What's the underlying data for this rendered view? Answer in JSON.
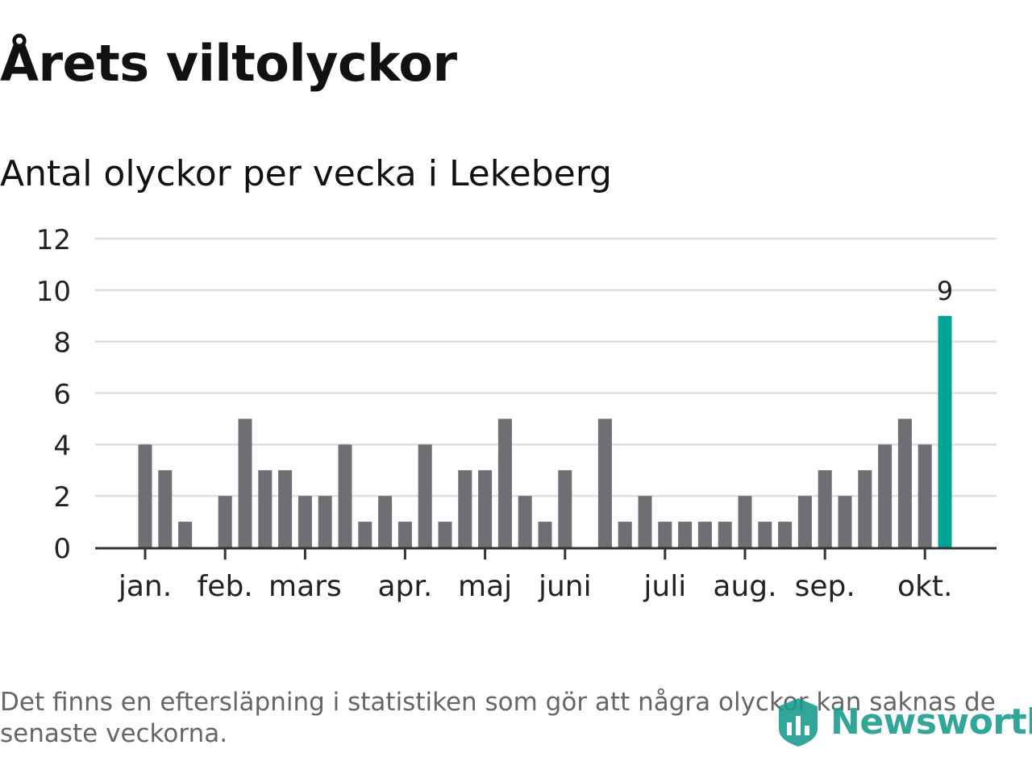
{
  "title": "Årets viltolyckor",
  "subtitle": "Antal olyckor per vecka i Lekeberg",
  "footnote": "Det finns en eftersläpning i statistiken som gör att några olyckor kan saknas de senaste veckorna.",
  "brand": {
    "name": "Newsworthy",
    "icon": "newsworthy-logo-icon"
  },
  "colors": {
    "bar": "#6f6e75",
    "highlight": "#00a496",
    "grid": "#dddddd",
    "axis": "#333333",
    "text": "#111111",
    "brand": "#169c8c"
  },
  "chart_data": {
    "type": "bar",
    "title": "Årets viltolyckor",
    "subtitle": "Antal olyckor per vecka i Lekeberg",
    "xlabel": "",
    "ylabel": "",
    "ylim": [
      0,
      12
    ],
    "yticks": [
      0,
      2,
      4,
      6,
      8,
      10,
      12
    ],
    "grid": true,
    "values": [
      4,
      3,
      1,
      0,
      2,
      5,
      3,
      3,
      2,
      2,
      4,
      1,
      2,
      1,
      4,
      1,
      3,
      3,
      5,
      2,
      1,
      3,
      0,
      5,
      1,
      2,
      1,
      1,
      1,
      1,
      2,
      1,
      1,
      2,
      3,
      2,
      3,
      4,
      5,
      4,
      9
    ],
    "highlight_index": 40,
    "highlight_label": "9",
    "month_labels": [
      {
        "label": "jan.",
        "week_index": 0
      },
      {
        "label": "feb.",
        "week_index": 4
      },
      {
        "label": "mars",
        "week_index": 8
      },
      {
        "label": "apr.",
        "week_index": 13
      },
      {
        "label": "maj",
        "week_index": 17
      },
      {
        "label": "juni",
        "week_index": 21
      },
      {
        "label": "juli",
        "week_index": 26
      },
      {
        "label": "aug.",
        "week_index": 30
      },
      {
        "label": "sep.",
        "week_index": 34
      },
      {
        "label": "okt.",
        "week_index": 39
      }
    ]
  }
}
